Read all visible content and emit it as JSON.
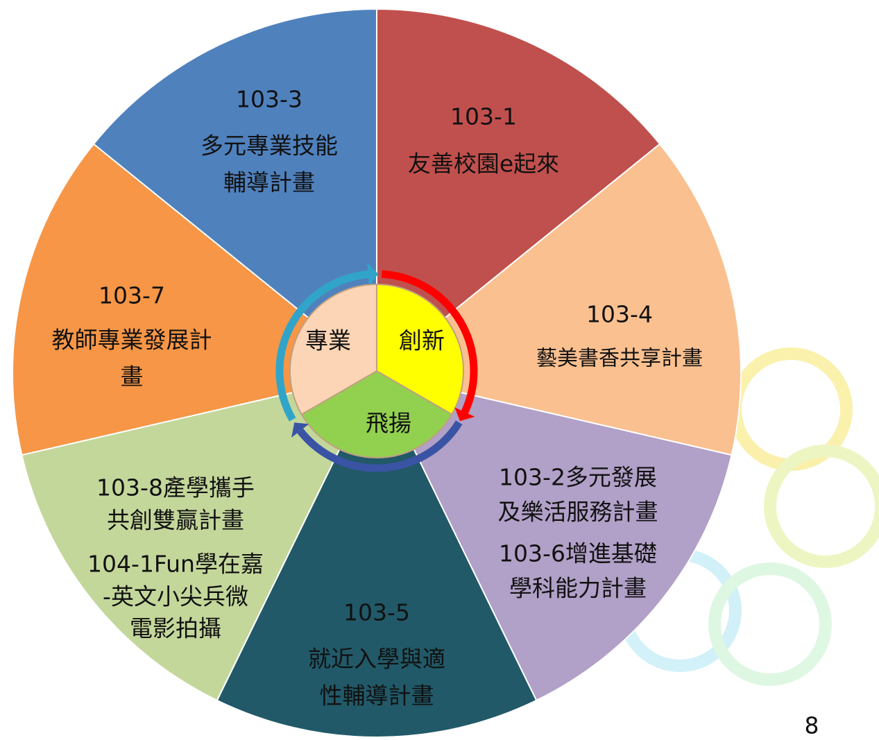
{
  "segments": [
    {
      "lines": [
        "103-1",
        "友善校園e起來"
      ]
    },
    {
      "lines": [
        "103-4",
        "藝美書香共享計畫"
      ]
    },
    {
      "lines": [
        "103-2多元發展",
        "及樂活服務計畫",
        "103-6增進基礎",
        "學科能力計畫"
      ]
    },
    {
      "lines": [
        "103-5",
        "就近入學與適",
        "性輔導計畫"
      ]
    },
    {
      "lines": [
        "103-8產學攜手",
        "共創雙贏計畫",
        "104-1Fun學在嘉",
        "-英文小尖兵微",
        "電影拍攝"
      ]
    },
    {
      "lines": [
        "103-7",
        "教師專業發展計",
        "畫"
      ]
    },
    {
      "lines": [
        "103-3",
        "多元專業技能",
        "輔導計畫"
      ]
    }
  ],
  "center": [
    "創新",
    "飛揚",
    "專業"
  ],
  "page_number": "8"
}
